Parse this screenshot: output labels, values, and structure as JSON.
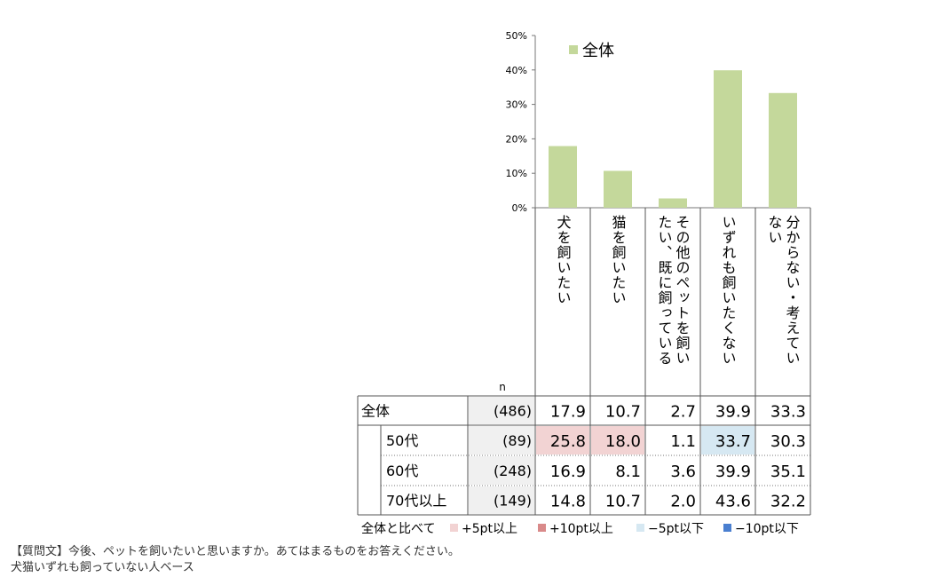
{
  "chart_data": {
    "type": "bar",
    "categories": [
      "犬を飼いたい",
      "猫を飼いたい",
      "その他のペットを飼いたい、既に飼っている",
      "いずれも飼いたくない",
      "分からない・考えていない"
    ],
    "category_lines": [
      [
        "犬を飼いたい"
      ],
      [
        "猫を飼いたい"
      ],
      [
        "その他のペットを飼い",
        "たい、既に飼っている"
      ],
      [
        "いずれも飼いたくない"
      ],
      [
        "分からない・考えてい",
        "ない"
      ]
    ],
    "series": [
      {
        "name": "全体",
        "values": [
          17.9,
          10.7,
          2.7,
          39.9,
          33.3
        ],
        "color": "#c4d89b"
      }
    ],
    "ylim": [
      0,
      50
    ],
    "yticks": [
      "0%",
      "10%",
      "20%",
      "30%",
      "40%",
      "50%"
    ],
    "legend": "top-left",
    "table": {
      "n_header": "n",
      "rows": [
        {
          "label": "全体",
          "n": "(486)",
          "values": [
            "17.9",
            "10.7",
            "2.7",
            "39.9",
            "33.3"
          ],
          "hl": [
            "",
            "",
            "",
            "",
            ""
          ]
        },
        {
          "label": "50代",
          "n": "(89)",
          "values": [
            "25.8",
            "18.0",
            "1.1",
            "33.7",
            "30.3"
          ],
          "hl": [
            "p5",
            "p5",
            "",
            "m5",
            ""
          ]
        },
        {
          "label": "60代",
          "n": "(248)",
          "values": [
            "16.9",
            "8.1",
            "3.6",
            "39.9",
            "35.1"
          ],
          "hl": [
            "",
            "",
            "",
            "",
            ""
          ]
        },
        {
          "label": "70代以上",
          "n": "(149)",
          "values": [
            "14.8",
            "10.7",
            "2.0",
            "43.6",
            "32.2"
          ],
          "hl": [
            "",
            "",
            "",
            "",
            ""
          ]
        }
      ]
    },
    "comparison_legend": {
      "title": "全体と比べて",
      "items": [
        {
          "label": "+5pt以上",
          "color": "#f2d3d3"
        },
        {
          "label": "+10pt以上",
          "color": "#d98a8a"
        },
        {
          "label": "−5pt以下",
          "color": "#d6e8f2"
        },
        {
          "label": "−10pt以下",
          "color": "#4a7fd0"
        }
      ]
    }
  },
  "footnote": {
    "question": "【質問文】今後、ペットを飼いたいと思いますか。あてはまるものをお答えください。",
    "base": "犬猫いずれも飼っていない人ベース"
  }
}
